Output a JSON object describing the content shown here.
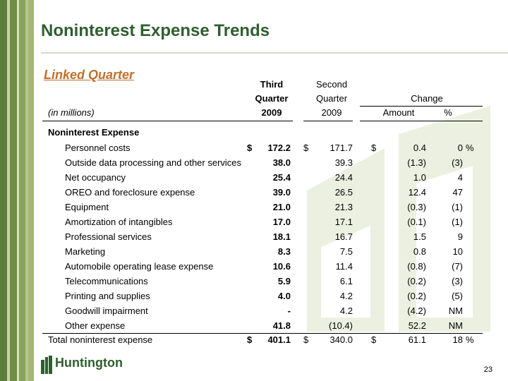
{
  "slide": {
    "title": "Noninterest Expense Trends",
    "subtitle": "Linked Quarter",
    "page_number": "23",
    "brand": "Huntington",
    "brand_color": "#2f5e2f",
    "accent_color": "#c0702c"
  },
  "table": {
    "headers": {
      "col1_line1": "Third",
      "col1_line2": "Quarter",
      "col1_line3": "2009",
      "col2_line1": "Second",
      "col2_line2": "Quarter",
      "col2_line3": "2009",
      "change": "Change",
      "amount": "Amount",
      "percent": "%",
      "units": "(in millions)"
    },
    "section": "Noninterest Expense",
    "rows": [
      {
        "label": "Personnel costs",
        "q3_cur": "$",
        "q3": "172.2",
        "q2_cur": "$",
        "q2": "171.7",
        "amt_cur": "$",
        "amt": "0.4",
        "pct": "0",
        "pct_sign": "%"
      },
      {
        "label": "Outside data processing and other services",
        "q3_cur": "",
        "q3": "38.0",
        "q2_cur": "",
        "q2": "39.3",
        "amt_cur": "",
        "amt": "(1.3)",
        "pct": "(3)",
        "pct_sign": ""
      },
      {
        "label": "Net occupancy",
        "q3_cur": "",
        "q3": "25.4",
        "q2_cur": "",
        "q2": "24.4",
        "amt_cur": "",
        "amt": "1.0",
        "pct": "4",
        "pct_sign": ""
      },
      {
        "label": "OREO and foreclosure expense",
        "q3_cur": "",
        "q3": "39.0",
        "q2_cur": "",
        "q2": "26.5",
        "amt_cur": "",
        "amt": "12.4",
        "pct": "47",
        "pct_sign": ""
      },
      {
        "label": "Equipment",
        "q3_cur": "",
        "q3": "21.0",
        "q2_cur": "",
        "q2": "21.3",
        "amt_cur": "",
        "amt": "(0.3)",
        "pct": "(1)",
        "pct_sign": ""
      },
      {
        "label": "Amortization of intangibles",
        "q3_cur": "",
        "q3": "17.0",
        "q2_cur": "",
        "q2": "17.1",
        "amt_cur": "",
        "amt": "(0.1)",
        "pct": "(1)",
        "pct_sign": ""
      },
      {
        "label": "Professional services",
        "q3_cur": "",
        "q3": "18.1",
        "q2_cur": "",
        "q2": "16.7",
        "amt_cur": "",
        "amt": "1.5",
        "pct": "9",
        "pct_sign": ""
      },
      {
        "label": "Marketing",
        "q3_cur": "",
        "q3": "8.3",
        "q2_cur": "",
        "q2": "7.5",
        "amt_cur": "",
        "amt": "0.8",
        "pct": "10",
        "pct_sign": ""
      },
      {
        "label": "Automobile operating lease expense",
        "q3_cur": "",
        "q3": "10.6",
        "q2_cur": "",
        "q2": "11.4",
        "amt_cur": "",
        "amt": "(0.8)",
        "pct": "(7)",
        "pct_sign": ""
      },
      {
        "label": "Telecommunications",
        "q3_cur": "",
        "q3": "5.9",
        "q2_cur": "",
        "q2": "6.1",
        "amt_cur": "",
        "amt": "(0.2)",
        "pct": "(3)",
        "pct_sign": ""
      },
      {
        "label": "Printing and supplies",
        "q3_cur": "",
        "q3": "4.0",
        "q2_cur": "",
        "q2": "4.2",
        "amt_cur": "",
        "amt": "(0.2)",
        "pct": "(5)",
        "pct_sign": ""
      },
      {
        "label": "Goodwill impairment",
        "q3_cur": "",
        "q3": "-",
        "q2_cur": "",
        "q2": "4.2",
        "amt_cur": "",
        "amt": "(4.2)",
        "pct": "NM",
        "pct_sign": ""
      },
      {
        "label": "Other expense",
        "q3_cur": "",
        "q3": "41.8",
        "q2_cur": "",
        "q2": "(10.4)",
        "amt_cur": "",
        "amt": "52.2",
        "pct": "NM",
        "pct_sign": ""
      }
    ],
    "total": {
      "label": "Total noninterest expense",
      "q3_cur": "$",
      "q3": "401.1",
      "q2_cur": "$",
      "q2": "340.0",
      "amt_cur": "$",
      "amt": "61.1",
      "pct": "18",
      "pct_sign": "%"
    }
  }
}
